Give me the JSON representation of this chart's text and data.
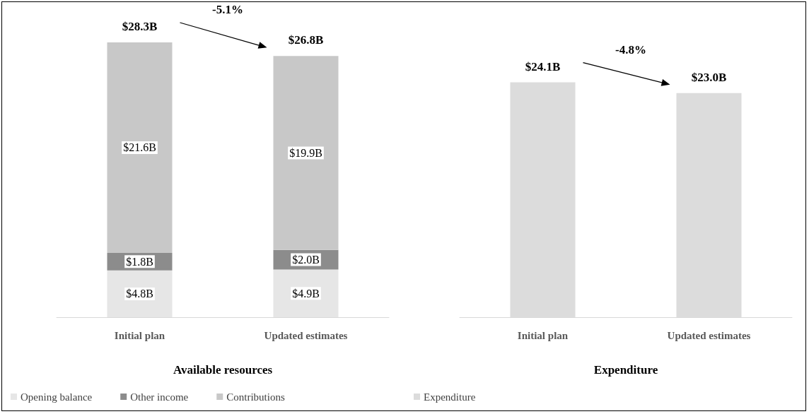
{
  "chart_data": [
    {
      "type": "bar",
      "stacked": true,
      "xlabel": "Available resources",
      "categories": [
        "Initial plan",
        "Updated estimates"
      ],
      "series": [
        {
          "name": "Opening balance",
          "color": "#e6e6e6",
          "values": [
            4.8,
            4.9
          ],
          "value_labels": [
            "$4.8B",
            "$4.9B"
          ]
        },
        {
          "name": "Other income",
          "color": "#8c8c8c",
          "values": [
            1.8,
            2.0
          ],
          "value_labels": [
            "$1.8B",
            "$2.0B"
          ]
        },
        {
          "name": "Contributions",
          "color": "#c8c8c8",
          "values": [
            21.6,
            19.9
          ],
          "value_labels": [
            "$21.6B",
            "$19.9B"
          ]
        }
      ],
      "totals": [
        "$28.3B",
        "$26.8B"
      ],
      "annotations": [
        "-5.1%"
      ],
      "legend": "bottom"
    },
    {
      "type": "bar",
      "xlabel": "Expenditure",
      "categories": [
        "Initial plan",
        "Updated estimates"
      ],
      "series": [
        {
          "name": "Expenditure",
          "color": "#dcdcdc",
          "values": [
            24.1,
            23.0
          ],
          "value_labels": [
            "$24.1B",
            "$23.0B"
          ]
        }
      ],
      "annotations": [
        "-4.8%"
      ],
      "legend": "bottom"
    }
  ]
}
